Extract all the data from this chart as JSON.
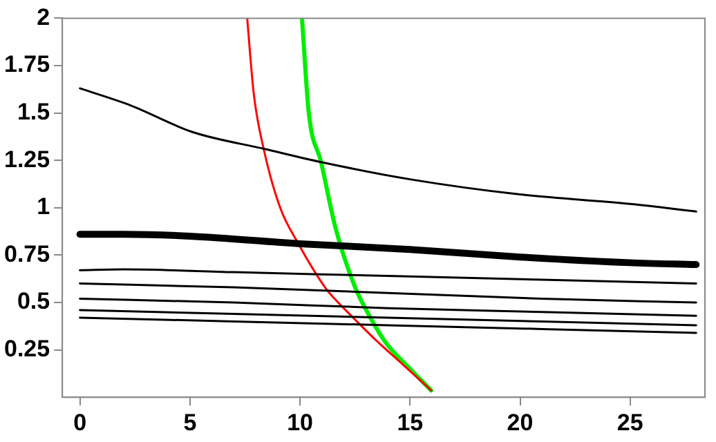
{
  "chart_data": {
    "type": "line",
    "xlim": [
      -0.8,
      28.4
    ],
    "ylim": [
      0,
      2
    ],
    "xticks": [
      0,
      5,
      10,
      15,
      20,
      25
    ],
    "yticks": [
      0.25,
      0.5,
      0.75,
      1,
      1.25,
      1.5,
      1.75,
      2
    ],
    "grid": false,
    "legend": false,
    "marker": "none",
    "line_style": "solid",
    "series": [
      {
        "color": "#000000",
        "x": [
          0,
          2.3,
          5.1,
          8.4,
          11,
          15,
          20,
          25,
          28
        ],
        "values": [
          1.63,
          1.54,
          1.4,
          1.31,
          1.24,
          1.15,
          1.07,
          1.02,
          0.98
        ]
      },
      {
        "color": "#000000",
        "x": [
          0,
          2,
          5,
          10,
          15,
          20,
          25,
          28
        ],
        "values": [
          0.86,
          0.86,
          0.85,
          0.81,
          0.78,
          0.74,
          0.71,
          0.7
        ]
      },
      {
        "color": "#000000",
        "x": [
          0,
          2,
          7,
          14,
          21,
          28
        ],
        "values": [
          0.67,
          0.675,
          0.66,
          0.64,
          0.62,
          0.6
        ]
      },
      {
        "color": "#000000",
        "x": [
          0,
          7,
          14,
          21,
          28
        ],
        "values": [
          0.6,
          0.58,
          0.55,
          0.52,
          0.5
        ]
      },
      {
        "color": "#000000",
        "x": [
          0,
          7,
          14,
          21,
          28
        ],
        "values": [
          0.52,
          0.5,
          0.47,
          0.45,
          0.43
        ]
      },
      {
        "color": "#000000",
        "x": [
          0,
          7,
          14,
          21,
          28
        ],
        "values": [
          0.46,
          0.44,
          0.42,
          0.4,
          0.38
        ]
      },
      {
        "color": "#000000",
        "x": [
          0,
          7,
          14,
          21,
          28
        ],
        "values": [
          0.42,
          0.4,
          0.38,
          0.36,
          0.34
        ]
      },
      {
        "color": "#ff0000",
        "x": [
          7.6,
          7.9,
          8.35,
          9.1,
          9.9,
          11.16,
          11.6,
          12.5,
          13.46,
          14.7,
          15.96
        ],
        "values": [
          2,
          1.6,
          1.31,
          1.0,
          0.815,
          0.576,
          0.516,
          0.41,
          0.3,
          0.17,
          0.036
        ]
      },
      {
        "color": "#00ee00",
        "x": [
          10.09,
          10.4,
          10.96,
          11.6,
          12.48,
          13.2,
          13.9,
          15,
          15.96
        ],
        "values": [
          2,
          1.5,
          1.24,
          0.9,
          0.587,
          0.42,
          0.288,
          0.15,
          0.036
        ]
      }
    ]
  }
}
